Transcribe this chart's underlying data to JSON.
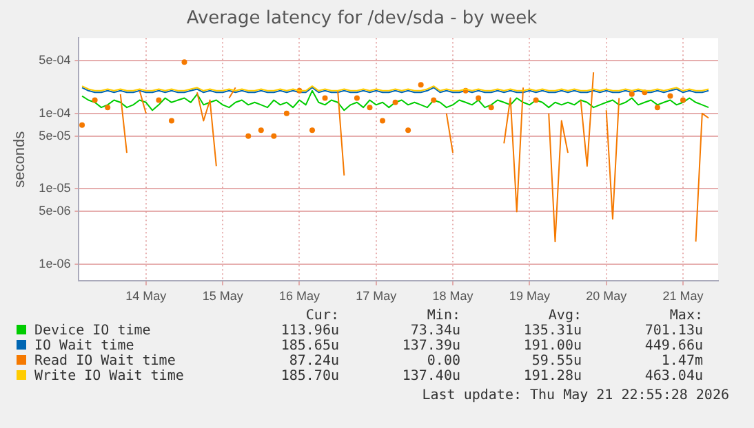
{
  "chart_data": {
    "type": "line",
    "title": "Average latency for /dev/sda - by week",
    "ylabel": "seconds",
    "log": "y",
    "grid": true,
    "legend": "bottom",
    "marker": "none",
    "line_style": "solid",
    "x": [
      "2026-05-13T16:00",
      "2026-05-13T18:00",
      "2026-05-13T20:00",
      "2026-05-13T22:00",
      "2026-05-14T00:00",
      "2026-05-14T02:00",
      "2026-05-14T04:00",
      "2026-05-14T06:00",
      "2026-05-14T08:00",
      "2026-05-14T10:00",
      "2026-05-14T12:00",
      "2026-05-14T14:00",
      "2026-05-14T16:00",
      "2026-05-14T18:00",
      "2026-05-14T20:00",
      "2026-05-14T22:00",
      "2026-05-15T00:00",
      "2026-05-15T02:00",
      "2026-05-15T04:00",
      "2026-05-15T06:00",
      "2026-05-15T08:00",
      "2026-05-15T10:00",
      "2026-05-15T12:00",
      "2026-05-15T14:00",
      "2026-05-15T16:00",
      "2026-05-15T18:00",
      "2026-05-15T20:00",
      "2026-05-15T22:00",
      "2026-05-16T00:00",
      "2026-05-16T02:00",
      "2026-05-16T04:00",
      "2026-05-16T06:00",
      "2026-05-16T08:00",
      "2026-05-16T10:00",
      "2026-05-16T12:00",
      "2026-05-16T14:00",
      "2026-05-16T16:00",
      "2026-05-16T18:00",
      "2026-05-16T20:00",
      "2026-05-16T22:00",
      "2026-05-17T00:00",
      "2026-05-17T02:00",
      "2026-05-17T04:00",
      "2026-05-17T06:00",
      "2026-05-17T08:00",
      "2026-05-17T10:00",
      "2026-05-17T12:00",
      "2026-05-17T14:00",
      "2026-05-17T16:00",
      "2026-05-17T18:00",
      "2026-05-17T20:00",
      "2026-05-17T22:00",
      "2026-05-18T00:00",
      "2026-05-18T02:00",
      "2026-05-18T04:00",
      "2026-05-18T06:00",
      "2026-05-18T08:00",
      "2026-05-18T10:00",
      "2026-05-18T12:00",
      "2026-05-18T14:00",
      "2026-05-18T16:00",
      "2026-05-18T18:00",
      "2026-05-18T20:00",
      "2026-05-18T22:00",
      "2026-05-19T00:00",
      "2026-05-19T02:00",
      "2026-05-19T04:00",
      "2026-05-19T06:00",
      "2026-05-19T08:00",
      "2026-05-19T10:00",
      "2026-05-19T12:00",
      "2026-05-19T14:00",
      "2026-05-19T16:00",
      "2026-05-19T18:00",
      "2026-05-19T20:00",
      "2026-05-19T22:00",
      "2026-05-20T00:00",
      "2026-05-20T02:00",
      "2026-05-20T04:00",
      "2026-05-20T06:00",
      "2026-05-20T08:00",
      "2026-05-20T10:00",
      "2026-05-20T12:00",
      "2026-05-20T14:00",
      "2026-05-20T16:00",
      "2026-05-20T18:00",
      "2026-05-20T20:00",
      "2026-05-20T22:00",
      "2026-05-21T00:00",
      "2026-05-21T02:00",
      "2026-05-21T04:00",
      "2026-05-21T06:00",
      "2026-05-21T08:00",
      "2026-05-21T10:00",
      "2026-05-21T12:00",
      "2026-05-21T14:00",
      "2026-05-21T16:00",
      "2026-05-21T18:00",
      "2026-05-21T20:00"
    ],
    "xlim": [
      "2026-05-13T15:00",
      "2026-05-21T23:00"
    ],
    "xticks": [
      {
        "value": "2026-05-14T12:00",
        "label": "14 May"
      },
      {
        "value": "2026-05-15T12:00",
        "label": "15 May"
      },
      {
        "value": "2026-05-16T12:00",
        "label": "16 May"
      },
      {
        "value": "2026-05-17T12:00",
        "label": "17 May"
      },
      {
        "value": "2026-05-18T12:00",
        "label": "18 May"
      },
      {
        "value": "2026-05-19T12:00",
        "label": "19 May"
      },
      {
        "value": "2026-05-20T12:00",
        "label": "20 May"
      },
      {
        "value": "2026-05-21T12:00",
        "label": "21 May"
      }
    ],
    "ylim": [
      6e-07,
      0.001
    ],
    "yticks": [
      {
        "value": 1e-06,
        "label": "1e-06"
      },
      {
        "value": 5e-06,
        "label": "5e-06"
      },
      {
        "value": 1e-05,
        "label": "1e-05"
      },
      {
        "value": 5e-05,
        "label": "5e-05"
      },
      {
        "value": 0.0001,
        "label": "1e-04"
      },
      {
        "value": 0.0005,
        "label": "5e-04"
      }
    ],
    "series": [
      {
        "name": "Device IO time",
        "color": "#00cc00",
        "values": [
          0.00017,
          0.00015,
          0.00014,
          0.00012,
          0.00013,
          0.00015,
          0.00014,
          0.00012,
          0.00013,
          0.00015,
          0.00014,
          0.00011,
          0.00013,
          0.00016,
          0.00014,
          0.00015,
          0.00016,
          0.00014,
          0.00018,
          0.00013,
          0.00014,
          0.00015,
          0.00013,
          0.00012,
          0.00014,
          0.00015,
          0.00013,
          0.00014,
          0.00013,
          0.00012,
          0.00015,
          0.00013,
          0.00014,
          0.00012,
          0.00015,
          0.00013,
          0.0002,
          0.00014,
          0.00013,
          0.00015,
          0.00014,
          0.00011,
          0.00013,
          0.00014,
          0.00012,
          0.00015,
          0.00013,
          0.00014,
          0.00012,
          0.00014,
          0.00015,
          0.00013,
          0.00014,
          0.00013,
          0.00012,
          0.00015,
          0.00014,
          0.00012,
          0.00013,
          0.00015,
          0.00014,
          0.00013,
          0.00015,
          0.00012,
          0.00013,
          0.00015,
          0.00014,
          0.00013,
          0.00016,
          0.00014,
          0.00013,
          0.00015,
          0.00014,
          0.00012,
          0.00014,
          0.00013,
          0.00014,
          0.00013,
          0.00015,
          0.00014,
          0.00012,
          0.00013,
          0.00014,
          0.00015,
          0.00013,
          0.00014,
          0.00016,
          0.00013,
          0.00014,
          0.00015,
          0.00013,
          0.00014,
          0.00015,
          0.00013,
          0.00014,
          0.00016,
          0.00014,
          0.00013,
          0.00012
        ]
      },
      {
        "name": "IO Wait time",
        "color": "#0066b3",
        "values": [
          0.00022,
          0.0002,
          0.00019,
          0.00019,
          0.0002,
          0.00019,
          0.0002,
          0.00019,
          0.00019,
          0.0002,
          0.00019,
          0.00019,
          0.0002,
          0.00019,
          0.0002,
          0.00019,
          0.00019,
          0.0002,
          0.00021,
          0.00019,
          0.0002,
          0.00019,
          0.00019,
          0.0002,
          0.00019,
          0.0002,
          0.00019,
          0.00019,
          0.0002,
          0.00019,
          0.00019,
          0.0002,
          0.00019,
          0.0002,
          0.00019,
          0.00019,
          0.00022,
          0.00019,
          0.0002,
          0.00019,
          0.00019,
          0.0002,
          0.00019,
          0.00019,
          0.0002,
          0.00019,
          0.0002,
          0.00019,
          0.00019,
          0.0002,
          0.00019,
          0.0002,
          0.00019,
          0.00019,
          0.0002,
          0.00022,
          0.00019,
          0.0002,
          0.00019,
          0.00019,
          0.0002,
          0.00019,
          0.0002,
          0.00019,
          0.00019,
          0.0002,
          0.00019,
          0.0002,
          0.00019,
          0.00019,
          0.0002,
          0.00019,
          0.0002,
          0.00019,
          0.00019,
          0.0002,
          0.00019,
          0.0002,
          0.00019,
          0.00019,
          0.0002,
          0.00019,
          0.0002,
          0.00019,
          0.00019,
          0.0002,
          0.00019,
          0.0002,
          0.00019,
          0.00019,
          0.0002,
          0.00019,
          0.0002,
          0.00021,
          0.00019,
          0.0002,
          0.00019,
          0.00019,
          0.0002
        ]
      },
      {
        "name": "Read IO Wait time",
        "color": "#f57900",
        "values": [
          7e-05,
          null,
          0.00015,
          null,
          0.00012,
          null,
          0.00018,
          3e-05,
          null,
          0.0002,
          0.0001,
          null,
          0.00015,
          null,
          8e-05,
          null,
          0.00048,
          null,
          0.00019,
          8e-05,
          0.00015,
          2e-05,
          null,
          0.00016,
          0.00022,
          null,
          5e-05,
          null,
          6e-05,
          null,
          5e-05,
          null,
          0.0001,
          null,
          0.0002,
          null,
          6e-05,
          null,
          0.00016,
          null,
          0.0002,
          1.5e-05,
          null,
          0.00016,
          null,
          0.00012,
          null,
          8e-05,
          null,
          0.00014,
          null,
          6e-05,
          null,
          0.00024,
          null,
          0.00015,
          null,
          0.0001,
          3e-05,
          null,
          0.0002,
          null,
          0.00016,
          null,
          0.00012,
          null,
          4e-05,
          0.00016,
          5e-06,
          0.00022,
          null,
          0.00015,
          null,
          0.0001,
          2e-06,
          8e-05,
          3e-05,
          null,
          0.00015,
          2e-05,
          0.00035,
          null,
          0.00011,
          4e-06,
          0.00016,
          null,
          0.00018,
          null,
          0.00019,
          null,
          0.00012,
          null,
          0.00017,
          null,
          0.00015,
          null,
          2e-06,
          0.0001,
          8.7e-05
        ]
      },
      {
        "name": "Write IO Wait time",
        "color": "#ffcc00",
        "values": [
          0.00023,
          0.00021,
          0.0002,
          0.0002,
          0.00021,
          0.0002,
          0.00021,
          0.0002,
          0.0002,
          0.00021,
          0.0002,
          0.0002,
          0.00021,
          0.0002,
          0.00021,
          0.0002,
          0.0002,
          0.00021,
          0.00022,
          0.0002,
          0.00021,
          0.0002,
          0.0002,
          0.00021,
          0.0002,
          0.00021,
          0.0002,
          0.0002,
          0.00021,
          0.0002,
          0.0002,
          0.00021,
          0.0002,
          0.00021,
          0.0002,
          0.0002,
          0.00023,
          0.0002,
          0.00021,
          0.0002,
          0.0002,
          0.00021,
          0.0002,
          0.0002,
          0.00021,
          0.0002,
          0.00021,
          0.0002,
          0.0002,
          0.00021,
          0.0002,
          0.00021,
          0.0002,
          0.0002,
          0.00021,
          0.00023,
          0.0002,
          0.00021,
          0.0002,
          0.0002,
          0.00021,
          0.0002,
          0.00021,
          0.0002,
          0.0002,
          0.00021,
          0.0002,
          0.00021,
          0.0002,
          0.0002,
          0.00021,
          0.0002,
          0.00021,
          0.0002,
          0.0002,
          0.00021,
          0.0002,
          0.00021,
          0.0002,
          0.0002,
          0.00021,
          0.0002,
          0.00021,
          0.0002,
          0.0002,
          0.00021,
          0.0002,
          0.00021,
          0.0002,
          0.0002,
          0.00021,
          0.0002,
          0.00021,
          0.00022,
          0.0002,
          0.00021,
          0.0002,
          0.0002,
          0.00021
        ]
      }
    ],
    "annotations": [
      "Cur:",
      "Min:",
      "Avg:",
      "Max:",
      "113.96u",
      "73.34u",
      "135.31u",
      "701.13u",
      "185.65u",
      "137.39u",
      "191.00u",
      "449.66u",
      "87.24u",
      "0.00",
      "59.55u",
      "1.47m",
      "185.70u",
      "137.40u",
      "191.28u",
      "463.04u",
      "Last update: Thu May 21 22:55:28 2026"
    ]
  }
}
